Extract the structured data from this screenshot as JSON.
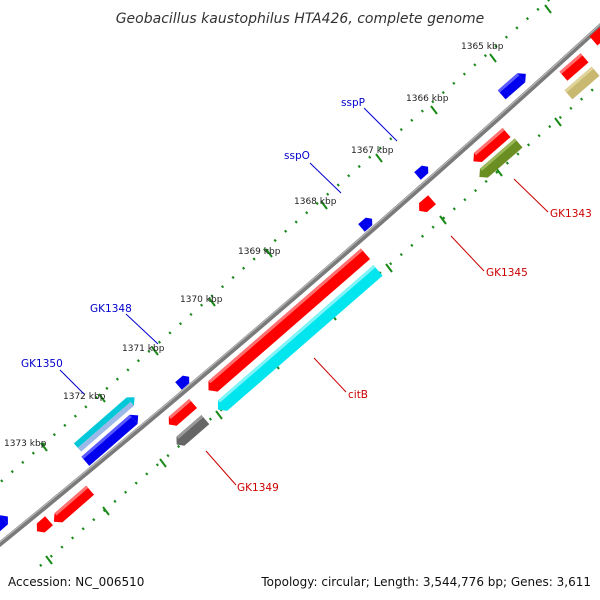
{
  "title": "Geobacillus kaustophilus HTA426, complete genome",
  "footer": {
    "accession": "Accession: NC_006510",
    "summary": "Topology: circular; Length: 3,544,776 bp; Genes: 3,611"
  },
  "scale_labels": [
    "1365 kbp",
    "1366 kbp",
    "1367 kbp",
    "1368 kbp",
    "1369 kbp",
    "1370 kbp",
    "1371 kbp",
    "1372 kbp",
    "1373 kbp"
  ],
  "colors": {
    "backbone": "#7a7a7a",
    "tick_dots": "#1a8a1a",
    "label_blue": "#0000cc",
    "label_red": "#cc0000",
    "gene_red": "#ff0000",
    "gene_blue": "#0000ee",
    "gene_cyan": "#00e5ee",
    "gene_olive": "#6b8e23",
    "gene_khaki": "#c8b870",
    "gene_gray": "#666666",
    "gene_lightblue": "#9ab8e8"
  },
  "gene_labels": {
    "sspP": "sspP",
    "sspO": "sspO",
    "GK1348": "GK1348",
    "GK1350": "GK1350",
    "GK1343": "GK1343",
    "GK1345": "GK1345",
    "citB": "citB",
    "GK1349": "GK1349"
  }
}
